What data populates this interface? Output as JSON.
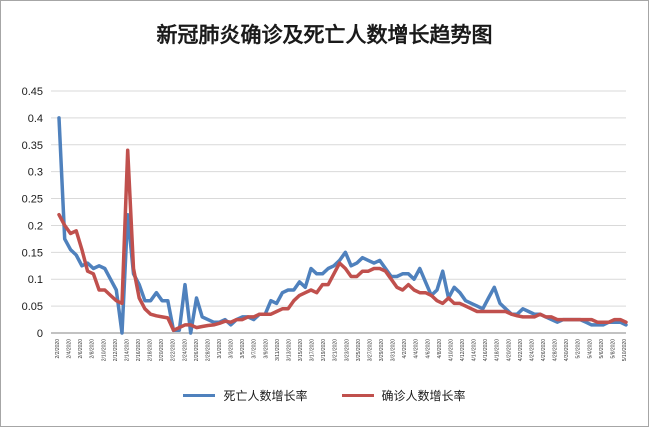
{
  "chart_data": {
    "type": "line",
    "title": "新冠肺炎确诊及死亡人数增长趋势图",
    "xlabel": "",
    "ylabel": "",
    "ylim": [
      0,
      0.45
    ],
    "y_ticks": [
      "0",
      "0.05",
      "0.1",
      "0.15",
      "0.2",
      "0.25",
      "0.3",
      "0.35",
      "0.4",
      "0.45"
    ],
    "grid": true,
    "legend_position": "bottom",
    "x_tick_labels": [
      "2/2/2020",
      "2/4/2020",
      "2/6/2020",
      "2/8/2020",
      "2/10/2020",
      "2/12/2020",
      "2/14/2020",
      "2/16/2020",
      "2/18/2020",
      "2/20/2020",
      "2/22/2020",
      "2/24/2020",
      "2/26/2020",
      "2/28/2020",
      "3/1/2020",
      "3/3/2020",
      "3/5/2020",
      "3/7/2020",
      "3/9/2020",
      "3/11/2020",
      "3/13/2020",
      "3/15/2020",
      "3/17/2020",
      "3/19/2020",
      "3/21/2020",
      "3/23/2020",
      "3/25/2020",
      "3/27/2020",
      "3/29/2020",
      "3/31/2020",
      "4/2/2020",
      "4/4/2020",
      "4/6/2020",
      "4/8/2020",
      "4/10/2020",
      "4/12/2020",
      "4/14/2020",
      "4/16/2020",
      "4/18/2020",
      "4/20/2020",
      "4/22/2020",
      "4/24/2020",
      "4/26/2020",
      "4/28/2020",
      "4/30/2020",
      "5/2/2020",
      "5/4/2020",
      "5/6/2020",
      "5/8/2020",
      "5/10/2020"
    ],
    "series": [
      {
        "name": "死亡人数增长率",
        "color": "#4f81bd",
        "values": [
          0.4,
          0.175,
          0.155,
          0.145,
          0.125,
          0.13,
          0.12,
          0.125,
          0.12,
          0.1,
          0.08,
          0.0,
          0.22,
          0.11,
          0.09,
          0.06,
          0.06,
          0.075,
          0.06,
          0.06,
          0.005,
          0.005,
          0.09,
          0.0,
          0.065,
          0.03,
          0.025,
          0.02,
          0.02,
          0.025,
          0.015,
          0.025,
          0.03,
          0.03,
          0.025,
          0.035,
          0.035,
          0.06,
          0.055,
          0.075,
          0.08,
          0.08,
          0.095,
          0.085,
          0.12,
          0.11,
          0.11,
          0.12,
          0.125,
          0.135,
          0.15,
          0.125,
          0.13,
          0.14,
          0.135,
          0.13,
          0.135,
          0.12,
          0.105,
          0.105,
          0.11,
          0.11,
          0.1,
          0.12,
          0.095,
          0.07,
          0.08,
          0.115,
          0.065,
          0.085,
          0.075,
          0.06,
          0.055,
          0.05,
          0.045,
          0.065,
          0.085,
          0.055,
          0.045,
          0.035,
          0.035,
          0.045,
          0.04,
          0.035,
          0.035,
          0.03,
          0.025,
          0.02,
          0.025,
          0.025,
          0.025,
          0.025,
          0.02,
          0.015,
          0.015,
          0.015,
          0.02,
          0.02,
          0.02,
          0.015
        ]
      },
      {
        "name": "确诊人数增长率",
        "color": "#c0504d",
        "values": [
          0.22,
          0.2,
          0.185,
          0.19,
          0.155,
          0.115,
          0.11,
          0.08,
          0.08,
          0.07,
          0.06,
          0.055,
          0.34,
          0.12,
          0.065,
          0.045,
          0.035,
          0.032,
          0.03,
          0.028,
          0.005,
          0.01,
          0.015,
          0.015,
          0.01,
          0.012,
          0.014,
          0.015,
          0.018,
          0.022,
          0.02,
          0.025,
          0.025,
          0.03,
          0.03,
          0.035,
          0.035,
          0.035,
          0.04,
          0.045,
          0.045,
          0.06,
          0.07,
          0.075,
          0.08,
          0.075,
          0.09,
          0.09,
          0.11,
          0.13,
          0.12,
          0.105,
          0.105,
          0.115,
          0.115,
          0.12,
          0.12,
          0.115,
          0.1,
          0.085,
          0.08,
          0.09,
          0.08,
          0.075,
          0.075,
          0.07,
          0.06,
          0.055,
          0.065,
          0.055,
          0.055,
          0.05,
          0.045,
          0.04,
          0.04,
          0.04,
          0.04,
          0.04,
          0.04,
          0.035,
          0.032,
          0.03,
          0.03,
          0.03,
          0.035,
          0.03,
          0.03,
          0.025,
          0.025,
          0.025,
          0.025,
          0.025,
          0.025,
          0.025,
          0.02,
          0.02,
          0.02,
          0.025,
          0.025,
          0.02
        ]
      }
    ]
  }
}
